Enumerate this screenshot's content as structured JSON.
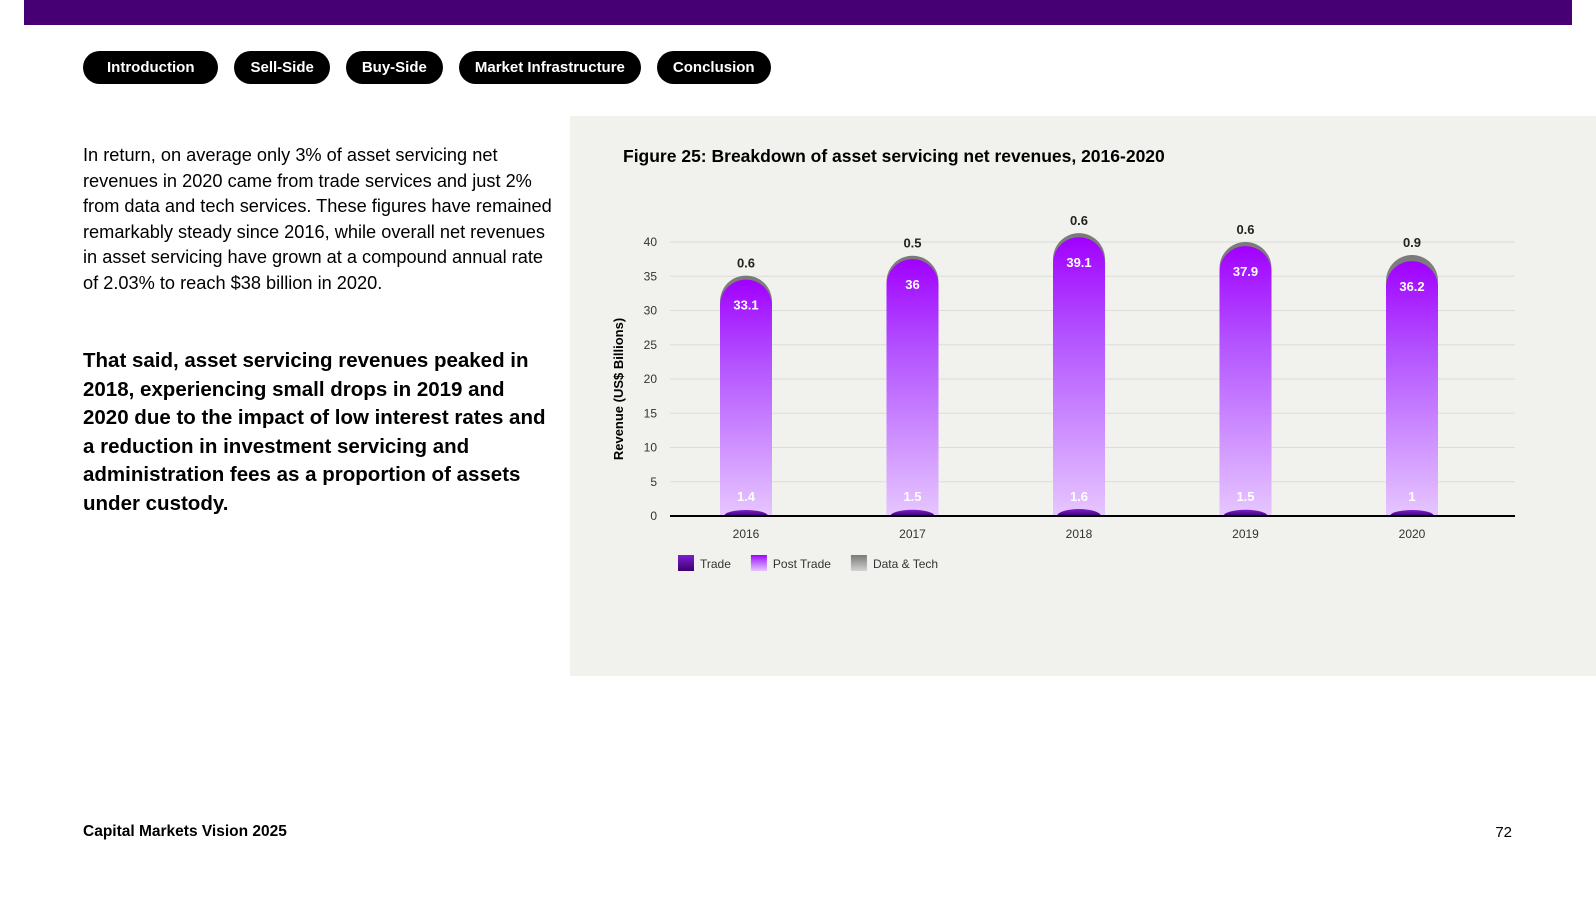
{
  "nav": {
    "items": [
      {
        "label": "Introduction"
      },
      {
        "label": "Sell-Side"
      },
      {
        "label": "Buy-Side"
      },
      {
        "label": "Market Infrastructure"
      },
      {
        "label": "Conclusion"
      }
    ]
  },
  "body": {
    "paragraph": "In return, on average only 3% of asset servicing net revenues in 2020 came from trade services and just 2% from data and tech services. These figures have remained remarkably steady since 2016, while overall net revenues in asset servicing have grown at a compound annual rate of 2.03% to reach $38 billion in 2020.",
    "highlight": "That said, asset servicing revenues peaked in 2018, experiencing small drops in 2019 and 2020 due to the impact of low interest rates and a reduction in investment servicing and administration fees as a proportion of assets under custody."
  },
  "colors": {
    "top_bar": "#460073",
    "trade": "#6a0dad",
    "post_trade": "#a100ff",
    "data_tech": "#9a9a9a",
    "panel": "#f1f1ee"
  },
  "chart_data": {
    "type": "bar",
    "stacked": true,
    "title": "Figure 25: Breakdown of asset servicing net revenues, 2016-2020",
    "xlabel": "",
    "ylabel": "Revenue (US$ Billions)",
    "ylim": [
      0,
      40
    ],
    "yticks": [
      0,
      5,
      10,
      15,
      20,
      25,
      30,
      35,
      40
    ],
    "grid": true,
    "legend_position": "bottom-left",
    "categories": [
      "2016",
      "2017",
      "2018",
      "2019",
      "2020"
    ],
    "series": [
      {
        "name": "Trade",
        "values": [
          1.4,
          1.5,
          1.6,
          1.5,
          1
        ]
      },
      {
        "name": "Post Trade",
        "values": [
          33.1,
          36,
          39.1,
          37.9,
          36.2
        ]
      },
      {
        "name": "Data & Tech",
        "values": [
          0.6,
          0.5,
          0.6,
          0.6,
          0.9
        ]
      }
    ]
  },
  "footer": {
    "title": "Capital Markets Vision 2025",
    "page": "72"
  }
}
